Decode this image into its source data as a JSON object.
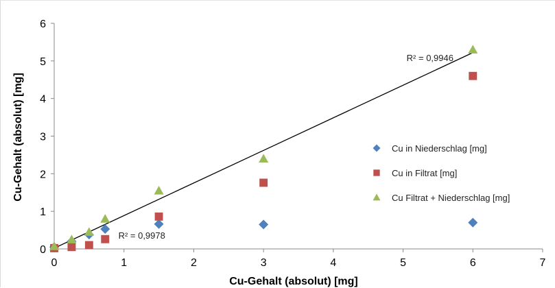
{
  "chart_data": {
    "type": "scatter",
    "title": "",
    "xlabel": "Cu-Gehalt (absolut) [mg]",
    "ylabel": "Cu-Gehalt (absolut) [mg]",
    "xlim": [
      0,
      7
    ],
    "ylim": [
      0,
      6
    ],
    "xticks": [
      "0",
      "1",
      "2",
      "3",
      "4",
      "5",
      "6",
      "7"
    ],
    "yticks": [
      "0",
      "1",
      "2",
      "3",
      "4",
      "5",
      "6"
    ],
    "grid": false,
    "legend_position": "right",
    "series": [
      {
        "name": "Cu in Niederschlag [mg]",
        "marker": "diamond",
        "color": "#4f81bd",
        "x": [
          0,
          0.25,
          0.5,
          0.73,
          1.5,
          3,
          6
        ],
        "y": [
          0.05,
          0.2,
          0.38,
          0.53,
          0.66,
          0.65,
          0.7
        ]
      },
      {
        "name": "Cu in Filtrat [mg]",
        "marker": "square",
        "color": "#c0504d",
        "x": [
          0,
          0.25,
          0.5,
          0.73,
          1.5,
          3,
          6
        ],
        "y": [
          0.02,
          0.05,
          0.1,
          0.26,
          0.86,
          1.76,
          4.6
        ]
      },
      {
        "name": "Cu Filtrat + Niederschlag [mg]",
        "marker": "triangle",
        "color": "#9bbb59",
        "x": [
          0,
          0.25,
          0.5,
          0.73,
          1.5,
          3,
          6
        ],
        "y": [
          0.07,
          0.25,
          0.45,
          0.8,
          1.55,
          2.4,
          5.3
        ]
      }
    ],
    "trendline": {
      "color": "#000000",
      "x": [
        0,
        6
      ],
      "y": [
        0.02,
        5.22
      ]
    },
    "annotations": [
      {
        "text": "R² = 0,9946",
        "x": 5.05,
        "y": 5.0
      },
      {
        "text": "R² = 0,9978",
        "x": 0.92,
        "y": 0.27
      }
    ]
  }
}
